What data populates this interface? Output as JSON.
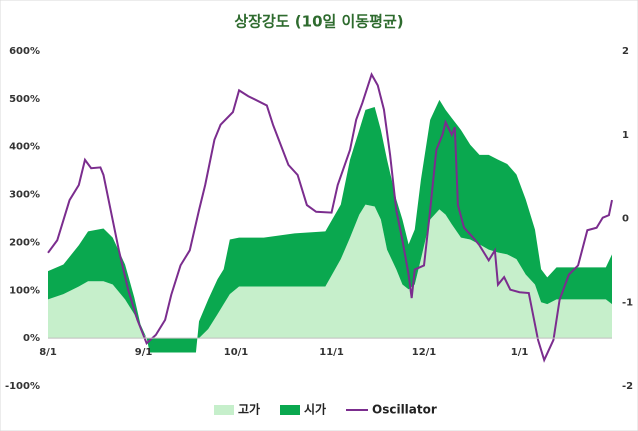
{
  "chart_data": {
    "type": "area-line",
    "title": "상장강도 (10일 이동평균)",
    "x": [
      0,
      5,
      10,
      13,
      18,
      21,
      25,
      28,
      30,
      32,
      33,
      48,
      49,
      52,
      55,
      57,
      59,
      62,
      70,
      80,
      90,
      95,
      98,
      101,
      103,
      106,
      108,
      110,
      113,
      115,
      117,
      119,
      121,
      124,
      127,
      129,
      131,
      134,
      137,
      140,
      143,
      146,
      149,
      152,
      155,
      158,
      160,
      162,
      165,
      168,
      175,
      181,
      183
    ],
    "xlim": [
      0,
      183
    ],
    "xticks": [
      {
        "value": 0,
        "label": "8/1"
      },
      {
        "value": 31,
        "label": "9/1"
      },
      {
        "value": 61,
        "label": "10/1"
      },
      {
        "value": 92,
        "label": "11/1"
      },
      {
        "value": 122,
        "label": "12/1"
      },
      {
        "value": 153,
        "label": "1/1"
      }
    ],
    "ylim": [
      -100,
      600
    ],
    "yticks": [
      {
        "value": -100,
        "label": "-100%"
      },
      {
        "value": 0,
        "label": "0%"
      },
      {
        "value": 100,
        "label": "100%"
      },
      {
        "value": 200,
        "label": "200%"
      },
      {
        "value": 300,
        "label": "300%"
      },
      {
        "value": 400,
        "label": "400%"
      },
      {
        "value": 500,
        "label": "500%"
      },
      {
        "value": 600,
        "label": "600%"
      }
    ],
    "y2lim": [
      -2,
      2
    ],
    "y2ticks": [
      -2,
      -1,
      0,
      1,
      2
    ],
    "series": [
      {
        "name": "고가",
        "color": "#c6efcb",
        "stacked": true,
        "values": [
          81,
          92,
          108,
          119,
          119,
          112,
          81,
          50,
          19,
          0,
          0,
          0,
          0,
          19,
          50,
          71,
          92,
          108,
          108,
          108,
          108,
          165,
          210,
          258,
          279,
          275,
          248,
          185,
          144,
          112,
          102,
          112,
          165,
          248,
          269,
          258,
          238,
          210,
          206,
          196,
          185,
          179,
          175,
          165,
          133,
          112,
          75,
          71,
          81,
          81,
          81,
          81,
          71
        ]
      },
      {
        "name": "시가",
        "color": "#0aa84f",
        "stacked": true,
        "values": [
          59,
          62,
          86,
          104,
          110,
          98,
          73,
          35,
          10,
          0,
          -30,
          -30,
          35,
          62,
          73,
          73,
          114,
          102,
          102,
          111,
          115,
          114,
          163,
          177,
          198,
          208,
          187,
          188,
          146,
          136,
          94,
          115,
          166,
          208,
          229,
          219,
          222,
          225,
          198,
          187,
          198,
          194,
          189,
          177,
          157,
          115,
          69,
          56,
          67,
          67,
          67,
          67,
          104
        ]
      },
      {
        "name": "Oscillator",
        "color": "#7b2d8e",
        "axis": "y2",
        "x": [
          0,
          3,
          5,
          7,
          10,
          12,
          14,
          17,
          18,
          21,
          23,
          26,
          29,
          32,
          35,
          38,
          40,
          43,
          46,
          49,
          51,
          54,
          56,
          60,
          62,
          65,
          71,
          73,
          78,
          81,
          84,
          87,
          92,
          94,
          98,
          100,
          102,
          105,
          107,
          109,
          111,
          113,
          115,
          117,
          118,
          119,
          122,
          124,
          126,
          128,
          129,
          131,
          132,
          133,
          135,
          138,
          140,
          143,
          145,
          146,
          148,
          150,
          153,
          156,
          159,
          161,
          164,
          166,
          169,
          172,
          175,
          178,
          180,
          182,
          183
        ],
        "values": [
          -0.41,
          -0.26,
          -0.02,
          0.22,
          0.4,
          0.7,
          0.6,
          0.61,
          0.52,
          -0.02,
          -0.38,
          -0.85,
          -1.21,
          -1.49,
          -1.39,
          -1.21,
          -0.91,
          -0.56,
          -0.38,
          0.1,
          0.4,
          0.94,
          1.12,
          1.27,
          1.53,
          1.46,
          1.35,
          1.12,
          0.64,
          0.52,
          0.16,
          0.08,
          0.07,
          0.4,
          0.82,
          1.18,
          1.38,
          1.72,
          1.59,
          1.3,
          0.76,
          0.1,
          -0.26,
          -0.67,
          -0.95,
          -0.61,
          -0.56,
          0.1,
          0.82,
          1.0,
          1.15,
          1.0,
          1.09,
          0.16,
          -0.11,
          -0.23,
          -0.32,
          -0.5,
          -0.38,
          -0.79,
          -0.7,
          -0.85,
          -0.88,
          -0.89,
          -1.45,
          -1.69,
          -1.45,
          -0.97,
          -0.67,
          -0.56,
          -0.14,
          -0.11,
          0.01,
          0.04,
          0.22
        ]
      }
    ]
  }
}
